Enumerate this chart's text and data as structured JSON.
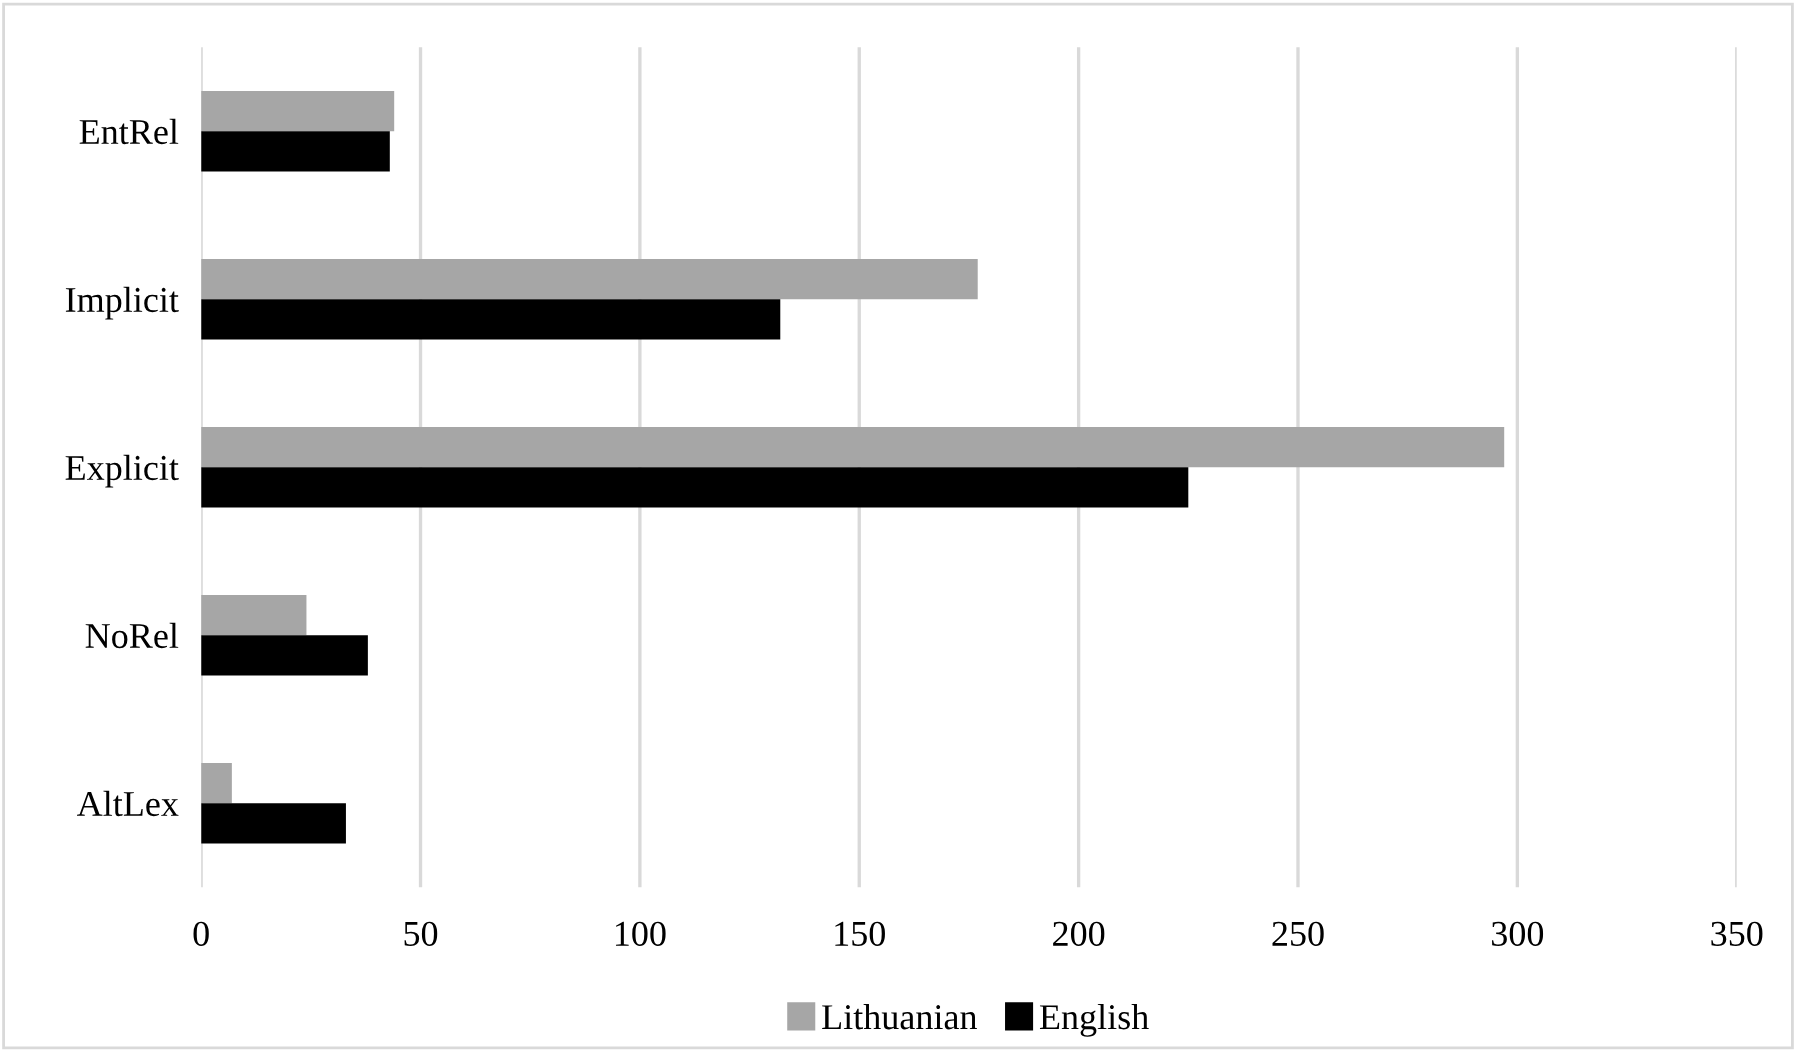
{
  "chart_data": {
    "type": "bar",
    "orientation": "horizontal",
    "categories": [
      "EntRel",
      "Implicit",
      "Explicit",
      "NoRel",
      "AltLex"
    ],
    "series": [
      {
        "name": "Lithuanian",
        "color": "#a6a6a6",
        "values": [
          44,
          177,
          297,
          24,
          7
        ]
      },
      {
        "name": "English",
        "color": "#000000",
        "values": [
          43,
          132,
          225,
          38,
          33
        ]
      }
    ],
    "xlim": [
      0,
      350
    ],
    "xticks": [
      0,
      50,
      100,
      150,
      200,
      250,
      300,
      350
    ],
    "grid": "x",
    "legend": "bottom"
  }
}
